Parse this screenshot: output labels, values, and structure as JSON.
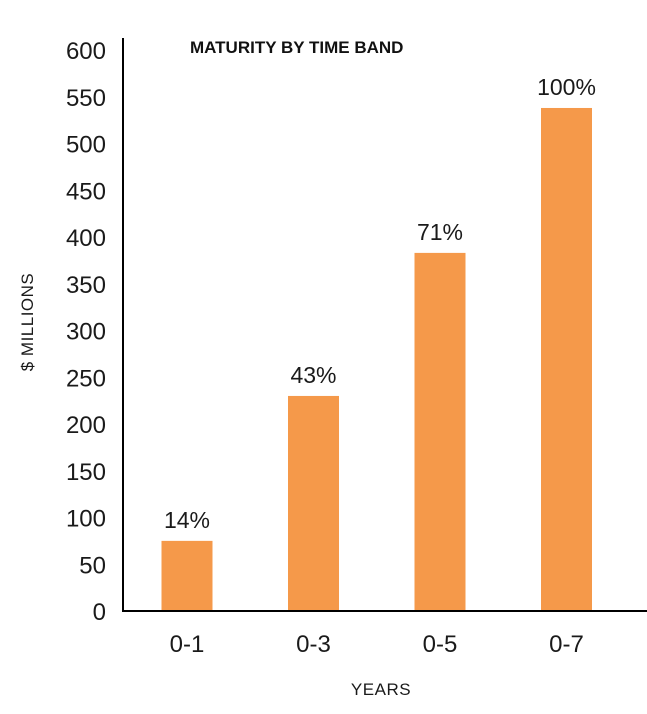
{
  "chart_data": {
    "type": "bar",
    "title": "MATURITY BY TIME BAND",
    "xlabel": "YEARS",
    "ylabel": "$ MILLIONS",
    "categories": [
      "0-1",
      "0-3",
      "0-5",
      "0-7"
    ],
    "values": [
      75,
      230,
      383,
      538
    ],
    "data_labels": [
      "14%",
      "43%",
      "71%",
      "100%"
    ],
    "ylim": [
      0,
      600
    ],
    "yticks": [
      0,
      50,
      100,
      150,
      200,
      250,
      300,
      350,
      400,
      450,
      500,
      550,
      600
    ],
    "grid": false,
    "bar_color": "#F5994A"
  }
}
